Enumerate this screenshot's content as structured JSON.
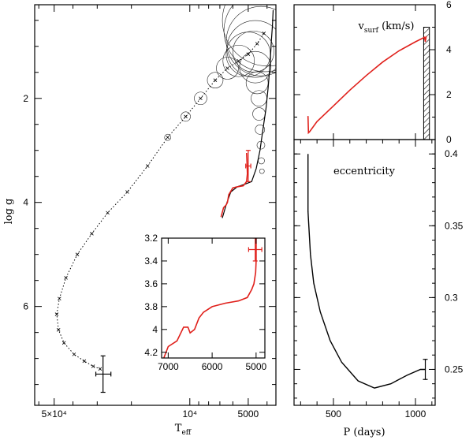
{
  "chart_data": [
    {
      "id": "kiel",
      "type": "scatter",
      "xlabel": "T",
      "xlabel_sub": "eff",
      "ylabel": "log g",
      "x_scale": "log",
      "x_reversed": true,
      "y_reversed": true,
      "xlim": [
        63000,
        3600
      ],
      "ylim": [
        0.2,
        7.9
      ],
      "x_ticks": [
        {
          "value": 50000,
          "label": "5×10⁴"
        },
        {
          "value": 10000,
          "label": "10⁴"
        },
        {
          "value": 5000,
          "label": "5000"
        }
      ],
      "y_ticks": [
        {
          "value": 2,
          "label": "2"
        },
        {
          "value": 4,
          "label": "4"
        },
        {
          "value": 6,
          "label": "6"
        }
      ],
      "track_dotted": [
        [
          4150,
          0.75
        ],
        [
          4500,
          0.95
        ],
        [
          5000,
          1.15
        ],
        [
          5600,
          1.28
        ],
        [
          6400,
          1.42
        ],
        [
          7400,
          1.65
        ],
        [
          8800,
          2.0
        ],
        [
          10500,
          2.35
        ],
        [
          13000,
          2.75
        ],
        [
          16500,
          3.3
        ],
        [
          21000,
          3.8
        ],
        [
          26500,
          4.2
        ],
        [
          32000,
          4.6
        ],
        [
          38000,
          5.0
        ],
        [
          43500,
          5.45
        ],
        [
          47000,
          5.85
        ],
        [
          48500,
          6.15
        ],
        [
          47500,
          6.45
        ],
        [
          44500,
          6.7
        ],
        [
          39500,
          6.92
        ],
        [
          35000,
          7.05
        ],
        [
          31500,
          7.15
        ],
        [
          29000,
          7.2
        ]
      ],
      "track_black": [
        [
          6800,
          4.3
        ],
        [
          6500,
          4.05
        ],
        [
          6150,
          3.8
        ],
        [
          5700,
          3.7
        ],
        [
          5200,
          3.65
        ],
        [
          4800,
          3.6
        ],
        [
          4550,
          3.35
        ],
        [
          4350,
          3.0
        ],
        [
          4200,
          2.6
        ],
        [
          4050,
          2.2
        ],
        [
          3950,
          1.8
        ],
        [
          3850,
          1.3
        ],
        [
          3800,
          0.9
        ],
        [
          3750,
          0.6
        ],
        [
          3720,
          0.3
        ]
      ],
      "track_red": [
        [
          6900,
          4.28
        ],
        [
          6700,
          4.1
        ],
        [
          6500,
          4.05
        ],
        [
          6400,
          4.0
        ],
        [
          6300,
          3.85
        ],
        [
          6000,
          3.72
        ],
        [
          5700,
          3.7
        ],
        [
          5300,
          3.68
        ],
        [
          5100,
          3.6
        ],
        [
          5050,
          3.45
        ],
        [
          5070,
          3.25
        ],
        [
          5100,
          3.05
        ]
      ],
      "circles": [
        [
          10500,
          2.35,
          6
        ],
        [
          8800,
          2.0,
          8
        ],
        [
          7400,
          1.65,
          10
        ],
        [
          6400,
          1.42,
          14
        ],
        [
          5600,
          1.28,
          20
        ],
        [
          5000,
          1.15,
          28
        ],
        [
          4600,
          1.05,
          36
        ],
        [
          4300,
          0.9,
          44
        ],
        [
          4100,
          0.7,
          52
        ],
        [
          3950,
          0.5,
          58
        ],
        [
          4400,
          2.0,
          10
        ],
        [
          4500,
          1.7,
          14
        ],
        [
          4600,
          1.4,
          20
        ],
        [
          4700,
          1.1,
          26
        ],
        [
          4400,
          2.3,
          8
        ],
        [
          4350,
          2.6,
          6
        ],
        [
          4300,
          2.9,
          5
        ],
        [
          4280,
          3.2,
          4
        ],
        [
          4250,
          3.4,
          3
        ],
        [
          13000,
          2.75,
          4
        ]
      ],
      "errorbar_red": {
        "x": 5000,
        "y": 3.3,
        "xerr": 150,
        "yerr": 0.3
      },
      "errorbar_black": {
        "x": 28000,
        "y": 7.3,
        "xerr": 2500,
        "yerr": 0.35
      }
    },
    {
      "id": "inset",
      "type": "line",
      "x_reversed": true,
      "y_reversed": true,
      "xlim": [
        7150,
        4800
      ],
      "ylim": [
        3.2,
        4.25
      ],
      "x_ticks": [
        {
          "value": 7000,
          "label": "7000"
        },
        {
          "value": 6000,
          "label": "6000"
        },
        {
          "value": 5000,
          "label": "5000"
        }
      ],
      "y_ticks": [
        {
          "value": 3.2,
          "label": "3.2"
        },
        {
          "value": 3.4,
          "label": "3.4"
        },
        {
          "value": 3.6,
          "label": "3.6"
        },
        {
          "value": 3.8,
          "label": "3.8"
        },
        {
          "value": 4.0,
          "label": "4"
        },
        {
          "value": 4.2,
          "label": "4.2"
        }
      ],
      "track_red": [
        [
          7100,
          4.25
        ],
        [
          7000,
          4.15
        ],
        [
          6800,
          4.1
        ],
        [
          6650,
          3.98
        ],
        [
          6550,
          3.98
        ],
        [
          6500,
          4.03
        ],
        [
          6400,
          4.0
        ],
        [
          6300,
          3.9
        ],
        [
          6200,
          3.85
        ],
        [
          6000,
          3.8
        ],
        [
          5700,
          3.77
        ],
        [
          5400,
          3.75
        ],
        [
          5200,
          3.72
        ],
        [
          5100,
          3.65
        ],
        [
          5050,
          3.6
        ],
        [
          5010,
          3.5
        ],
        [
          5000,
          3.4
        ],
        [
          5000,
          3.2
        ]
      ],
      "errorbar_red": {
        "x": 5020,
        "y": 3.3,
        "xerr": 150,
        "yerr": 0.1
      }
    },
    {
      "id": "vsurf",
      "type": "line",
      "title": "v",
      "title_sub": "surf",
      "title_suffix": " (km/s)",
      "xlim": [
        260,
        1120
      ],
      "ylim": [
        0,
        6
      ],
      "y_axis_side": "right",
      "y_ticks": [
        {
          "value": 0,
          "label": "0"
        },
        {
          "value": 2,
          "label": "2"
        },
        {
          "value": 4,
          "label": "4"
        },
        {
          "value": 6,
          "label": "6"
        }
      ],
      "series_red": [
        [
          345,
          1.05
        ],
        [
          348,
          0.3
        ],
        [
          355,
          0.35
        ],
        [
          400,
          0.8
        ],
        [
          500,
          1.5
        ],
        [
          600,
          2.2
        ],
        [
          700,
          2.85
        ],
        [
          800,
          3.45
        ],
        [
          900,
          3.95
        ],
        [
          1000,
          4.35
        ],
        [
          1055,
          4.55
        ],
        [
          1060,
          4.35
        ],
        [
          1065,
          4.6
        ]
      ],
      "hatched_band": {
        "x0": 1050,
        "x1": 1085,
        "y0": 0,
        "y1": 5
      }
    },
    {
      "id": "ecc",
      "type": "line",
      "title": "eccentricity",
      "xlabel": "P (days)",
      "xlim": [
        260,
        1120
      ],
      "ylim": [
        0.225,
        0.41
      ],
      "y_axis_side": "right",
      "x_ticks": [
        {
          "value": 500,
          "label": "500"
        },
        {
          "value": 1000,
          "label": "1000"
        }
      ],
      "y_ticks": [
        {
          "value": 0.25,
          "label": "0.25"
        },
        {
          "value": 0.3,
          "label": "0.3"
        },
        {
          "value": 0.35,
          "label": "0.35"
        },
        {
          "value": 0.4,
          "label": "0.4"
        }
      ],
      "series": [
        [
          345,
          0.4
        ],
        [
          345,
          0.36
        ],
        [
          360,
          0.33
        ],
        [
          380,
          0.31
        ],
        [
          420,
          0.29
        ],
        [
          480,
          0.27
        ],
        [
          550,
          0.255
        ],
        [
          650,
          0.242
        ],
        [
          750,
          0.237
        ],
        [
          850,
          0.24
        ],
        [
          950,
          0.246
        ],
        [
          1030,
          0.25
        ],
        [
          1060,
          0.25
        ]
      ],
      "errorbar": {
        "x": 1060,
        "y": 0.25,
        "yerr": 0.007
      }
    }
  ]
}
